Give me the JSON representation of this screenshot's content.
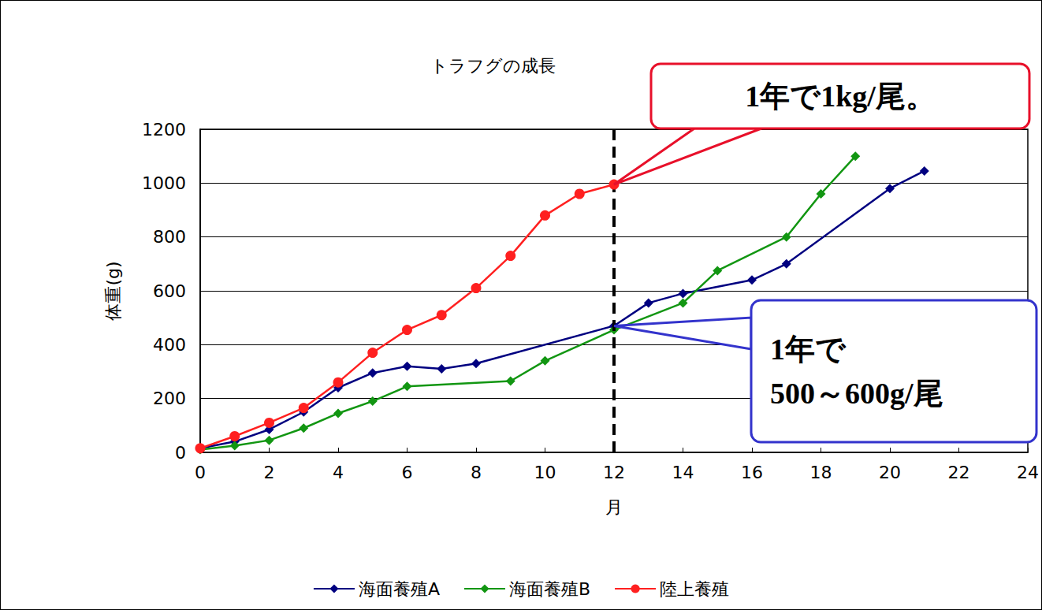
{
  "chart_data": {
    "type": "line",
    "title": "トラフグの成長",
    "x_label": "月",
    "y_label": "体重(g)",
    "series": [
      {
        "name": "海面養殖A",
        "color": "#000080",
        "marker": "diamond",
        "x": [
          0,
          1,
          2,
          3,
          4,
          5,
          6,
          7,
          8,
          12,
          13,
          14,
          16,
          17,
          20,
          21
        ],
        "values": [
          15,
          40,
          85,
          150,
          240,
          295,
          320,
          310,
          330,
          470,
          555,
          590,
          640,
          700,
          980,
          1045
        ]
      },
      {
        "name": "海面養殖B",
        "color": "#129612",
        "marker": "diamond",
        "x": [
          0,
          1,
          2,
          3,
          4,
          5,
          6,
          9,
          10,
          12,
          14,
          15,
          17,
          18,
          19
        ],
        "values": [
          10,
          25,
          45,
          90,
          145,
          190,
          245,
          265,
          340,
          455,
          555,
          675,
          800,
          960,
          1100
        ]
      },
      {
        "name": "陸上養殖",
        "color": "#ff2020",
        "marker": "circle",
        "x": [
          0,
          1,
          2,
          3,
          4,
          5,
          6,
          7,
          8,
          9,
          10,
          11,
          12
        ],
        "values": [
          15,
          60,
          110,
          165,
          260,
          370,
          455,
          510,
          610,
          730,
          880,
          960,
          995
        ]
      }
    ],
    "xlim": [
      0,
      24
    ],
    "xticks": [
      0,
      2,
      4,
      6,
      8,
      10,
      12,
      14,
      16,
      18,
      20,
      22,
      24
    ],
    "ylim": [
      0,
      1200
    ],
    "yticks": [
      0,
      200,
      400,
      600,
      800,
      1000,
      1200
    ],
    "grid": true,
    "legend": "bottom",
    "reference_line": {
      "x": 12
    },
    "annotations": [
      {
        "text": "1年で1kg/尾。",
        "x": 12,
        "y": 995,
        "color": "#e8102a"
      },
      {
        "text": "1年で\n500～600g/尾",
        "x": 12,
        "y": 470,
        "color": "#3333cc"
      }
    ]
  }
}
